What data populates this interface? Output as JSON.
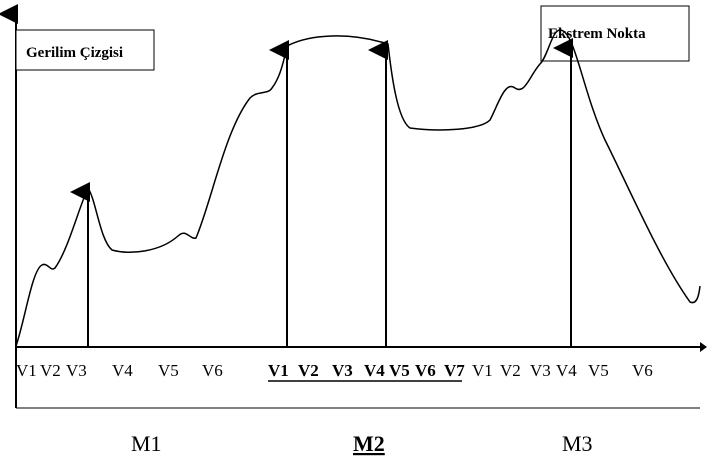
{
  "diagram": {
    "curve_label": "Gerilim Çizgisi",
    "extreme_label": "Ekstrem Nokta",
    "axis_ticks": [
      "V1",
      "V2",
      "V3",
      "V4",
      "V5",
      "V6",
      "V1",
      "V2",
      "V3",
      "V4",
      "V5",
      "V6",
      "V7",
      "V1",
      "V2",
      "V3",
      "V4",
      "V5",
      "V6"
    ],
    "groups": [
      {
        "name": "M1",
        "emphasis": false
      },
      {
        "name": "M2",
        "emphasis": true
      },
      {
        "name": "M3",
        "emphasis": false
      }
    ]
  }
}
